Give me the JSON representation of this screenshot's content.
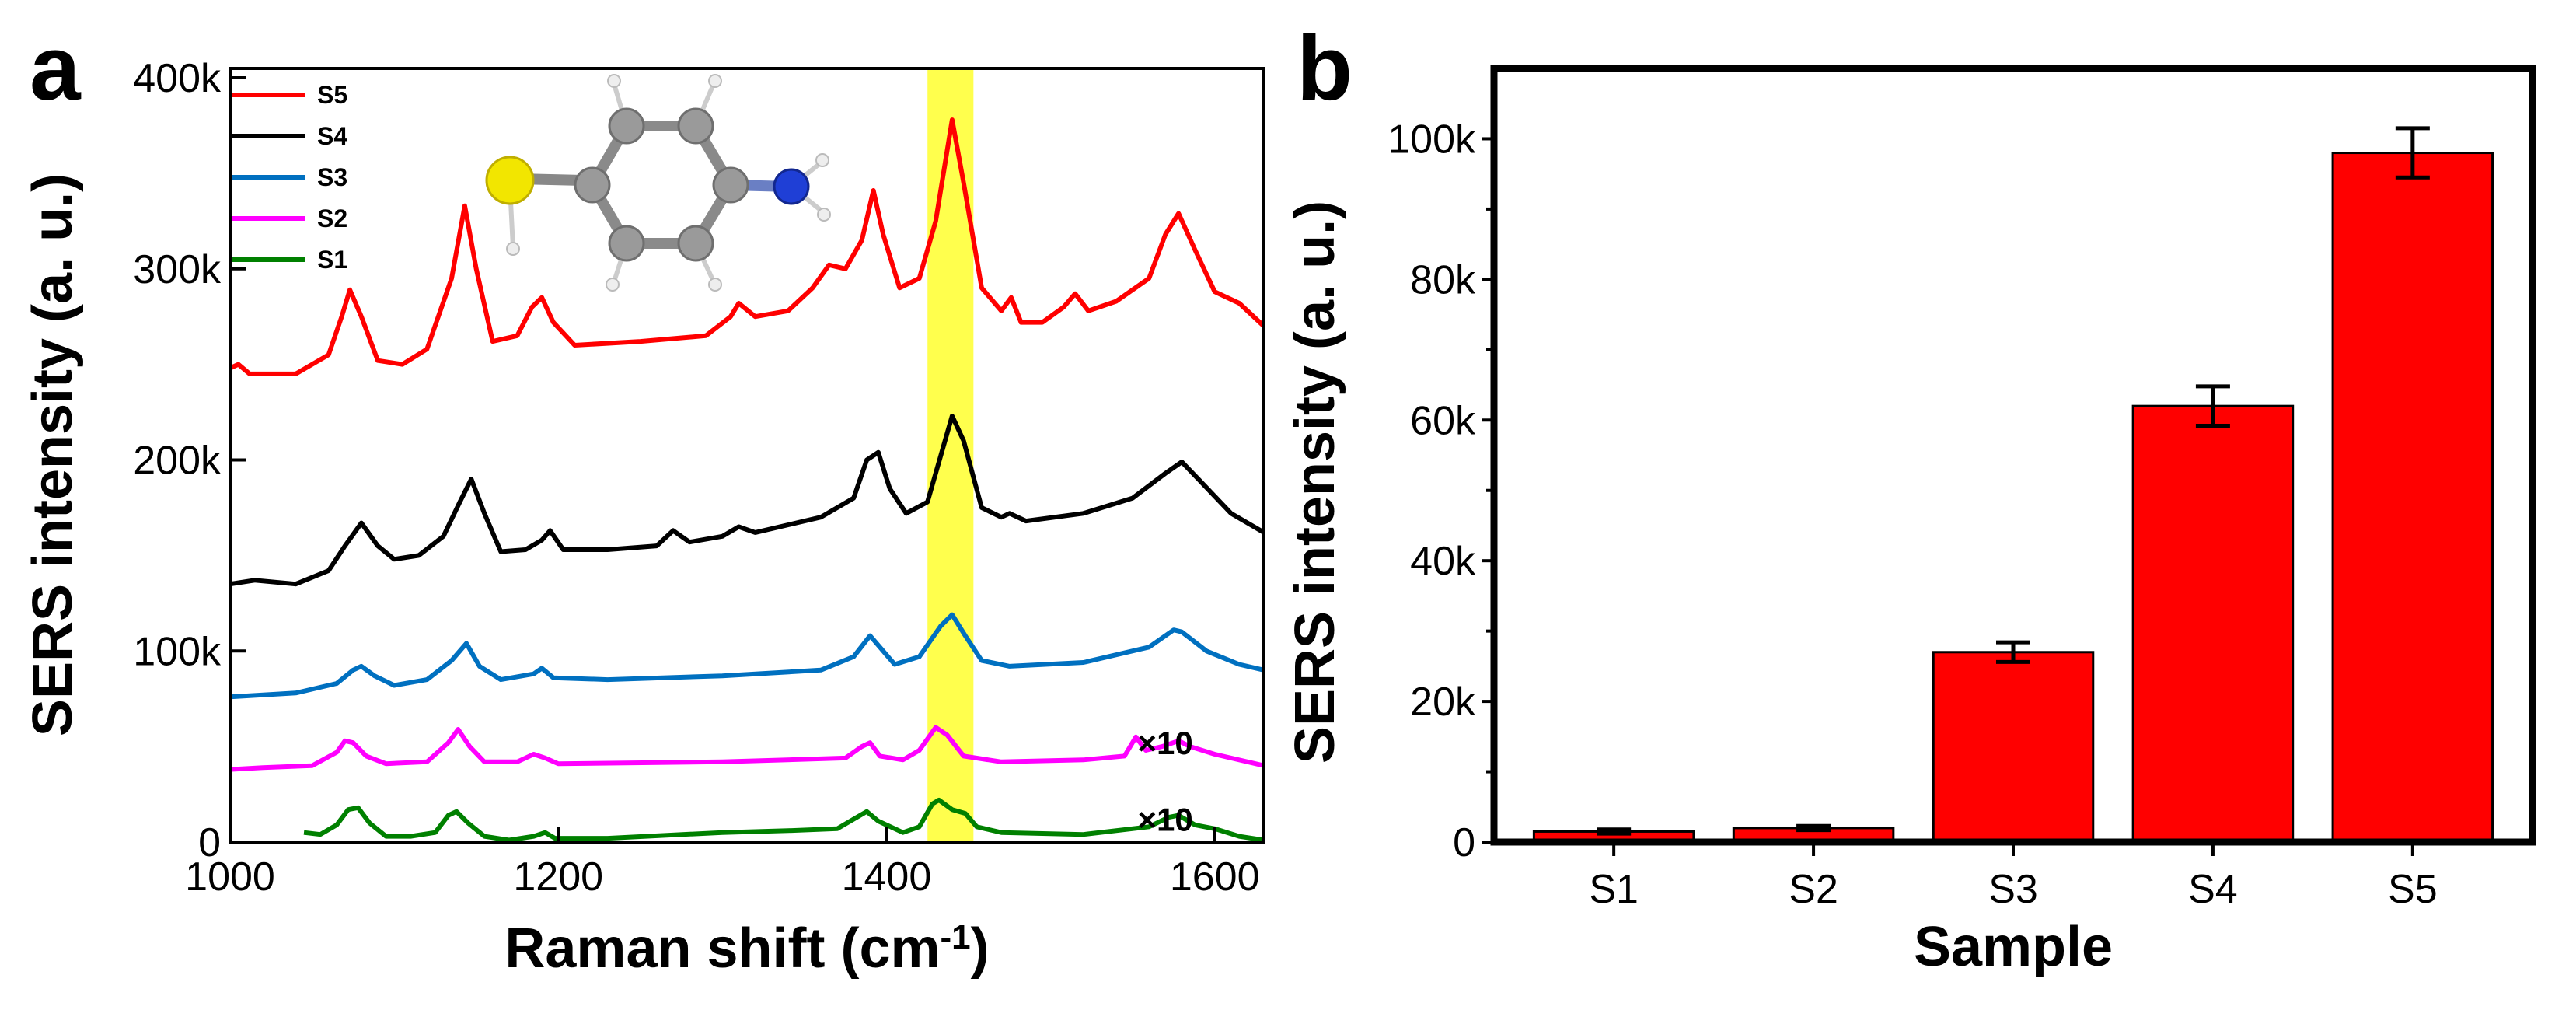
{
  "panel_a": {
    "label": "a",
    "chart_data": {
      "type": "line",
      "xlabel_main": "Raman shift (cm",
      "xlabel_sup": "-1",
      "xlabel_close": ")",
      "ylabel": "SERS intensity (a. u.)",
      "xlim": [
        1000,
        1630
      ],
      "ylim": [
        0,
        400000
      ],
      "xticks": [
        1000,
        1200,
        1400,
        1600
      ],
      "xtick_labels": [
        "1000",
        "1200",
        "1400",
        "1600"
      ],
      "yticks": [
        0,
        100000,
        200000,
        300000,
        400000
      ],
      "ytick_labels": [
        "0",
        "100k",
        "200k",
        "300k",
        "400k"
      ],
      "highlight_band": [
        1425,
        1453
      ],
      "highlight_color": "#ffff4d",
      "series": [
        {
          "name": "S5",
          "color": "#ff0000",
          "points": [
            [
              1000,
              248000
            ],
            [
              1005,
              250000
            ],
            [
              1012,
              245000
            ],
            [
              1040,
              245000
            ],
            [
              1060,
              255000
            ],
            [
              1068,
              275000
            ],
            [
              1073,
              289000
            ],
            [
              1080,
              275000
            ],
            [
              1090,
              252000
            ],
            [
              1105,
              250000
            ],
            [
              1120,
              258000
            ],
            [
              1135,
              295000
            ],
            [
              1143,
              333000
            ],
            [
              1150,
              300000
            ],
            [
              1160,
              262000
            ],
            [
              1175,
              265000
            ],
            [
              1184,
              280000
            ],
            [
              1190,
              285000
            ],
            [
              1197,
              272000
            ],
            [
              1210,
              260000
            ],
            [
              1250,
              262000
            ],
            [
              1290,
              265000
            ],
            [
              1305,
              275000
            ],
            [
              1310,
              282000
            ],
            [
              1320,
              275000
            ],
            [
              1340,
              278000
            ],
            [
              1355,
              290000
            ],
            [
              1365,
              302000
            ],
            [
              1375,
              300000
            ],
            [
              1385,
              315000
            ],
            [
              1392,
              341000
            ],
            [
              1398,
              318000
            ],
            [
              1408,
              290000
            ],
            [
              1420,
              295000
            ],
            [
              1430,
              325000
            ],
            [
              1440,
              378000
            ],
            [
              1447,
              345000
            ],
            [
              1458,
              290000
            ],
            [
              1470,
              278000
            ],
            [
              1476,
              285000
            ],
            [
              1482,
              272000
            ],
            [
              1495,
              272000
            ],
            [
              1508,
              280000
            ],
            [
              1515,
              287000
            ],
            [
              1523,
              278000
            ],
            [
              1540,
              283000
            ],
            [
              1560,
              295000
            ],
            [
              1570,
              318000
            ],
            [
              1578,
              329000
            ],
            [
              1588,
              310000
            ],
            [
              1600,
              288000
            ],
            [
              1615,
              282000
            ],
            [
              1630,
              270000
            ]
          ]
        },
        {
          "name": "S4",
          "color": "#000000",
          "points": [
            [
              1000,
              135000
            ],
            [
              1015,
              137000
            ],
            [
              1040,
              135000
            ],
            [
              1060,
              142000
            ],
            [
              1070,
              155000
            ],
            [
              1080,
              167000
            ],
            [
              1090,
              155000
            ],
            [
              1100,
              148000
            ],
            [
              1115,
              150000
            ],
            [
              1130,
              160000
            ],
            [
              1140,
              178000
            ],
            [
              1147,
              190000
            ],
            [
              1155,
              172000
            ],
            [
              1165,
              152000
            ],
            [
              1180,
              153000
            ],
            [
              1190,
              158000
            ],
            [
              1195,
              163000
            ],
            [
              1203,
              153000
            ],
            [
              1230,
              153000
            ],
            [
              1260,
              155000
            ],
            [
              1270,
              163000
            ],
            [
              1280,
              157000
            ],
            [
              1300,
              160000
            ],
            [
              1310,
              165000
            ],
            [
              1320,
              162000
            ],
            [
              1360,
              170000
            ],
            [
              1380,
              180000
            ],
            [
              1388,
              200000
            ],
            [
              1395,
              204000
            ],
            [
              1402,
              185000
            ],
            [
              1412,
              172000
            ],
            [
              1425,
              178000
            ],
            [
              1435,
              208000
            ],
            [
              1440,
              223000
            ],
            [
              1447,
              210000
            ],
            [
              1458,
              175000
            ],
            [
              1470,
              170000
            ],
            [
              1475,
              172000
            ],
            [
              1485,
              168000
            ],
            [
              1520,
              172000
            ],
            [
              1550,
              180000
            ],
            [
              1570,
              193000
            ],
            [
              1580,
              199000
            ],
            [
              1590,
              190000
            ],
            [
              1610,
              172000
            ],
            [
              1630,
              162000
            ]
          ]
        },
        {
          "name": "S3",
          "color": "#0070c0",
          "points": [
            [
              1000,
              76000
            ],
            [
              1040,
              78000
            ],
            [
              1065,
              83000
            ],
            [
              1075,
              90000
            ],
            [
              1080,
              92000
            ],
            [
              1088,
              87000
            ],
            [
              1100,
              82000
            ],
            [
              1120,
              85000
            ],
            [
              1135,
              95000
            ],
            [
              1144,
              104000
            ],
            [
              1152,
              92000
            ],
            [
              1165,
              85000
            ],
            [
              1185,
              88000
            ],
            [
              1190,
              91000
            ],
            [
              1197,
              86000
            ],
            [
              1230,
              85000
            ],
            [
              1300,
              87000
            ],
            [
              1360,
              90000
            ],
            [
              1380,
              97000
            ],
            [
              1390,
              108000
            ],
            [
              1395,
              103000
            ],
            [
              1405,
              93000
            ],
            [
              1420,
              97000
            ],
            [
              1433,
              113000
            ],
            [
              1440,
              119000
            ],
            [
              1448,
              108000
            ],
            [
              1458,
              95000
            ],
            [
              1475,
              92000
            ],
            [
              1520,
              94000
            ],
            [
              1560,
              102000
            ],
            [
              1575,
              111000
            ],
            [
              1580,
              110000
            ],
            [
              1595,
              100000
            ],
            [
              1615,
              93000
            ],
            [
              1630,
              90000
            ]
          ]
        },
        {
          "name": "S2",
          "color": "#ff00ff",
          "points": [
            [
              1000,
              38000
            ],
            [
              1020,
              39000
            ],
            [
              1050,
              40000
            ],
            [
              1065,
              47000
            ],
            [
              1070,
              53000
            ],
            [
              1075,
              52000
            ],
            [
              1083,
              45000
            ],
            [
              1095,
              41000
            ],
            [
              1120,
              42000
            ],
            [
              1133,
              52000
            ],
            [
              1139,
              59000
            ],
            [
              1146,
              50000
            ],
            [
              1155,
              42000
            ],
            [
              1175,
              42000
            ],
            [
              1185,
              46000
            ],
            [
              1192,
              44000
            ],
            [
              1200,
              41000
            ],
            [
              1300,
              42000
            ],
            [
              1375,
              44000
            ],
            [
              1385,
              50000
            ],
            [
              1390,
              52000
            ],
            [
              1396,
              45000
            ],
            [
              1410,
              43000
            ],
            [
              1420,
              48000
            ],
            [
              1430,
              60000
            ],
            [
              1437,
              56000
            ],
            [
              1447,
              45000
            ],
            [
              1470,
              42000
            ],
            [
              1520,
              43000
            ],
            [
              1545,
              45000
            ],
            [
              1552,
              55000
            ],
            [
              1558,
              48000
            ],
            [
              1568,
              50000
            ],
            [
              1578,
              53000
            ],
            [
              1585,
              50000
            ],
            [
              1600,
              46000
            ],
            [
              1630,
              40000
            ]
          ]
        },
        {
          "name": "S1",
          "color": "#008000",
          "points": [
            [
              1045,
              5000
            ],
            [
              1055,
              4000
            ],
            [
              1065,
              9000
            ],
            [
              1072,
              17000
            ],
            [
              1078,
              18000
            ],
            [
              1085,
              10000
            ],
            [
              1095,
              3000
            ],
            [
              1110,
              3000
            ],
            [
              1125,
              5000
            ],
            [
              1133,
              14000
            ],
            [
              1138,
              16000
            ],
            [
              1145,
              10000
            ],
            [
              1155,
              3000
            ],
            [
              1170,
              1000
            ],
            [
              1185,
              3000
            ],
            [
              1192,
              5000
            ],
            [
              1198,
              2000
            ],
            [
              1230,
              2000
            ],
            [
              1300,
              5000
            ],
            [
              1340,
              6000
            ],
            [
              1370,
              7000
            ],
            [
              1380,
              12000
            ],
            [
              1388,
              16000
            ],
            [
              1395,
              11000
            ],
            [
              1410,
              5000
            ],
            [
              1420,
              8000
            ],
            [
              1428,
              20000
            ],
            [
              1432,
              22000
            ],
            [
              1440,
              17000
            ],
            [
              1448,
              15000
            ],
            [
              1455,
              8000
            ],
            [
              1470,
              5000
            ],
            [
              1520,
              4000
            ],
            [
              1560,
              8000
            ],
            [
              1572,
              13000
            ],
            [
              1578,
              14000
            ],
            [
              1588,
              9000
            ],
            [
              1600,
              7000
            ],
            [
              1615,
              3000
            ],
            [
              1630,
              1000
            ]
          ]
        }
      ],
      "legend_position": "top-left",
      "annotations": [
        {
          "text": "×10",
          "x": 1553,
          "y": 52000
        },
        {
          "text": "×10",
          "x": 1553,
          "y": 12000
        }
      ]
    }
  },
  "panel_b": {
    "label": "b",
    "chart_data": {
      "type": "bar",
      "categories": [
        "S1",
        "S2",
        "S3",
        "S4",
        "S5"
      ],
      "values": [
        1500,
        2000,
        27000,
        62000,
        98000
      ],
      "errors": [
        300,
        300,
        1400,
        2800,
        3500
      ],
      "color": "#ff0000",
      "xlabel": "Sample",
      "ylabel": "SERS intensity (a. u.)",
      "ylim": [
        0,
        110000
      ],
      "yticks": [
        0,
        20000,
        40000,
        60000,
        80000,
        100000
      ],
      "ytick_labels": [
        "0",
        "20k",
        "40k",
        "60k",
        "80k",
        "100k"
      ]
    }
  }
}
